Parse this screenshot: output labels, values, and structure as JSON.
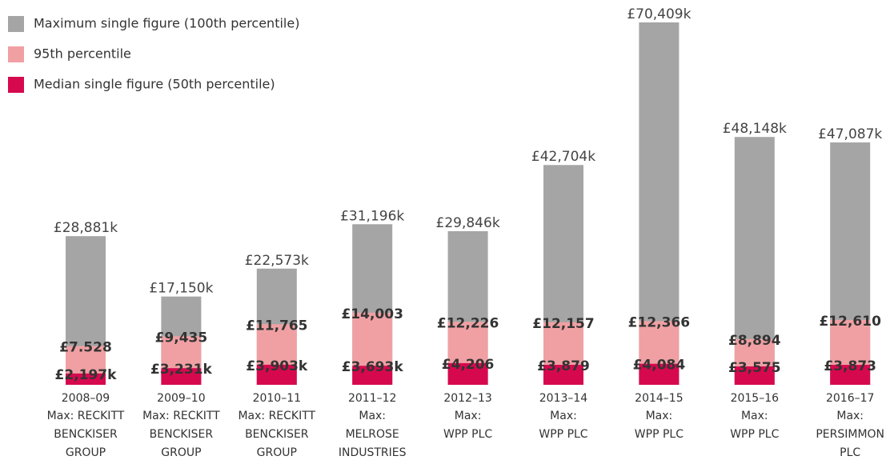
{
  "chart_data": {
    "type": "bar",
    "categories": [
      "2008–09",
      "2009–10",
      "2010–11",
      "2011–12",
      "2012–13",
      "2013–14",
      "2014–15",
      "2015–16",
      "2016–17"
    ],
    "max_labels": [
      [
        "Max: RECKITT",
        "BENCKISER",
        "GROUP"
      ],
      [
        "Max: RECKITT",
        "BENCKISER",
        "GROUP"
      ],
      [
        "Max: RECKITT",
        "BENCKISER",
        "GROUP"
      ],
      [
        "Max:",
        "MELROSE",
        "INDUSTRIES"
      ],
      [
        "Max:",
        "WPP PLC"
      ],
      [
        "Max:",
        "WPP PLC"
      ],
      [
        "Max:",
        "WPP PLC"
      ],
      [
        "Max:",
        "WPP PLC"
      ],
      [
        "Max:",
        "PERSIMMON",
        "PLC"
      ]
    ],
    "series": [
      {
        "name": "Maximum single figure (100th percentile)",
        "color": "#a5a5a5",
        "values": [
          28881,
          17150,
          22573,
          31196,
          29846,
          42704,
          70409,
          48148,
          47087
        ],
        "value_labels": [
          "£28,881k",
          "£17,150k",
          "£22,573k",
          "£31,196k",
          "£29,846k",
          "£42,704k",
          "£70,409k",
          "£48,148k",
          "£47,087k"
        ]
      },
      {
        "name": "95th percentile",
        "color": "#f0a0a3",
        "values": [
          7528,
          9435,
          11765,
          14003,
          12226,
          12157,
          12366,
          8894,
          12610
        ],
        "value_labels": [
          "£7.528",
          "£9,435",
          "£11,765",
          "£14,003",
          "£12,226",
          "£12,157",
          "£12,366",
          "£8,894",
          "£12,610"
        ]
      },
      {
        "name": "Median single figure (50th percentile)",
        "color": "#d6094f",
        "values": [
          2197,
          3231,
          3903,
          3693,
          4206,
          3879,
          4084,
          3575,
          3873
        ],
        "value_labels": [
          "£2,197k",
          "£3,231k",
          "£3,903k",
          "£3,693k",
          "£4,206",
          "£3,879",
          "£4,084",
          "£3,575",
          "£3,873"
        ]
      }
    ]
  }
}
